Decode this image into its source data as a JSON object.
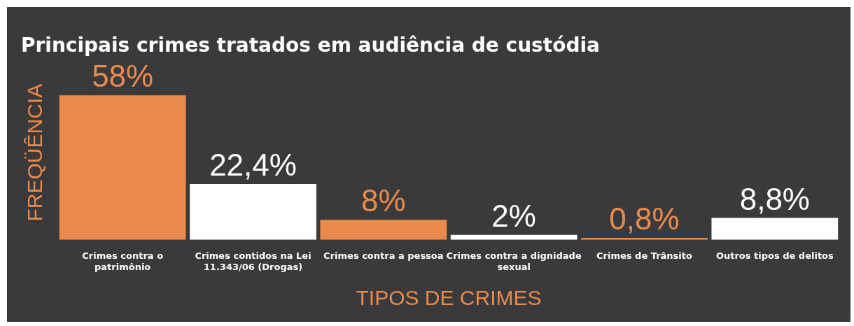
{
  "chart_data": {
    "type": "bar",
    "title": "Principais crimes tratados em audiência de custódia",
    "xlabel": "TIPOS DE CRIMES",
    "ylabel": "FREQÜÊNCIA",
    "categories": [
      "Crimes contra o patrimônio",
      "Crimes contidos na Lei 11.343/06 (Drogas)",
      "Crimes contra a pessoa",
      "Crimes contra a dignidade sexual",
      "Crimes de Trânsito",
      "Outros tipos de delitos"
    ],
    "values": [
      58,
      22.4,
      8,
      2,
      0.8,
      8.8
    ],
    "colors": [
      "#ea8a4b",
      "#ffffff",
      "#ea8a4b",
      "#ffffff",
      "#ea8a4b",
      "#ffffff"
    ],
    "value_labels": [
      "58%",
      "22,4%",
      "8%",
      "2%",
      "0,8%",
      "8,8%"
    ],
    "grid": false,
    "legend": false
  }
}
